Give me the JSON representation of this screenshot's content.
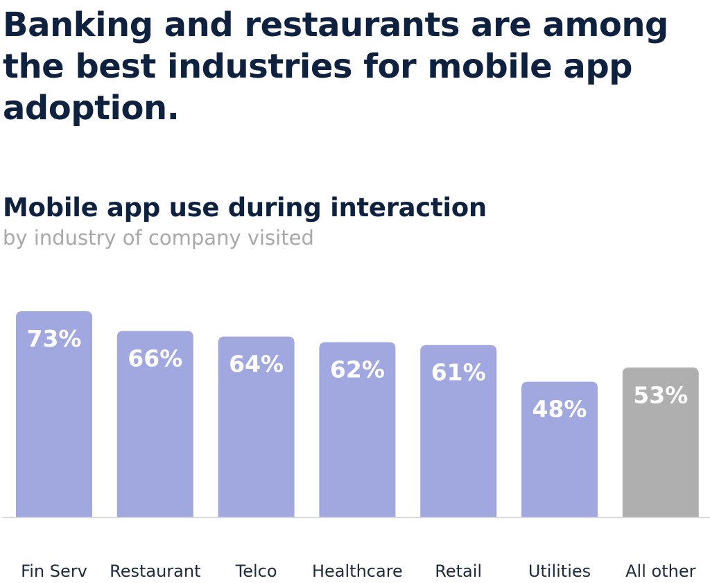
{
  "headline": "Banking and restaurants are among the best industries for mobile app adoption.",
  "chart_data": {
    "type": "bar",
    "title": "Mobile app use during interaction",
    "subtitle": "by industry of company visited",
    "categories": [
      "Fin Serv",
      "Restaurant",
      "Telco",
      "Healthcare",
      "Retail",
      "Utilities",
      "All other"
    ],
    "values": [
      73,
      66,
      64,
      62,
      61,
      48,
      53
    ],
    "labels": [
      "73%",
      "66%",
      "64%",
      "62%",
      "61%",
      "48%",
      "53%"
    ],
    "unit": "%",
    "ylim": [
      0,
      100
    ],
    "grid": false,
    "colors": [
      "#a0a8df",
      "#a0a8df",
      "#a0a8df",
      "#a0a8df",
      "#a0a8df",
      "#a0a8df",
      "#afafaf"
    ]
  }
}
